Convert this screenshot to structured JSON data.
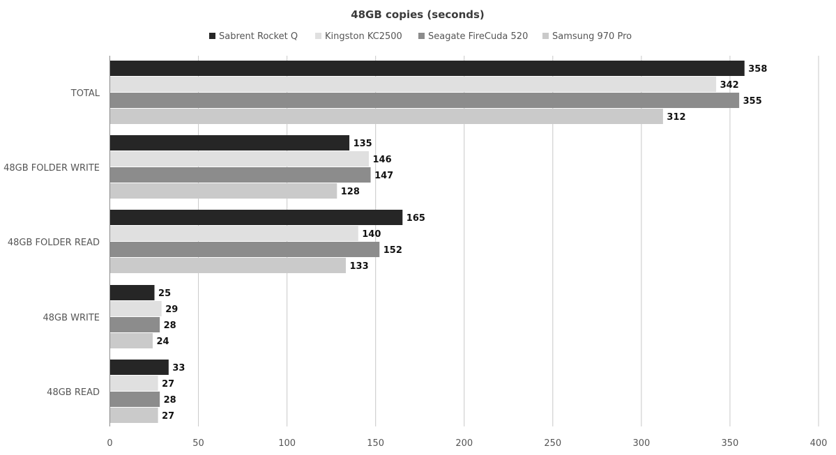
{
  "chart_data": {
    "type": "bar",
    "orientation": "horizontal",
    "title": "48GB copies (seconds)",
    "categories": [
      "TOTAL",
      "48GB FOLDER WRITE",
      "48GB FOLDER READ",
      "48GB WRITE",
      "48GB READ"
    ],
    "series": [
      {
        "name": "Sabrent Rocket Q",
        "color": "#262626",
        "values": [
          358,
          135,
          165,
          25,
          33
        ]
      },
      {
        "name": "Kingston KC2500",
        "color": "#e0e0e0",
        "values": [
          342,
          146,
          140,
          29,
          27
        ]
      },
      {
        "name": "Seagate FireCuda 520",
        "color": "#8c8c8c",
        "values": [
          355,
          147,
          152,
          28,
          28
        ]
      },
      {
        "name": "Samsung 970 Pro",
        "color": "#cacaca",
        "values": [
          312,
          128,
          133,
          24,
          27
        ]
      }
    ],
    "xlim": [
      0,
      400
    ],
    "xticks": [
      0,
      50,
      100,
      150,
      200,
      250,
      300,
      350,
      400
    ],
    "grid": "vertical",
    "legend_position": "top",
    "data_labels": true
  }
}
